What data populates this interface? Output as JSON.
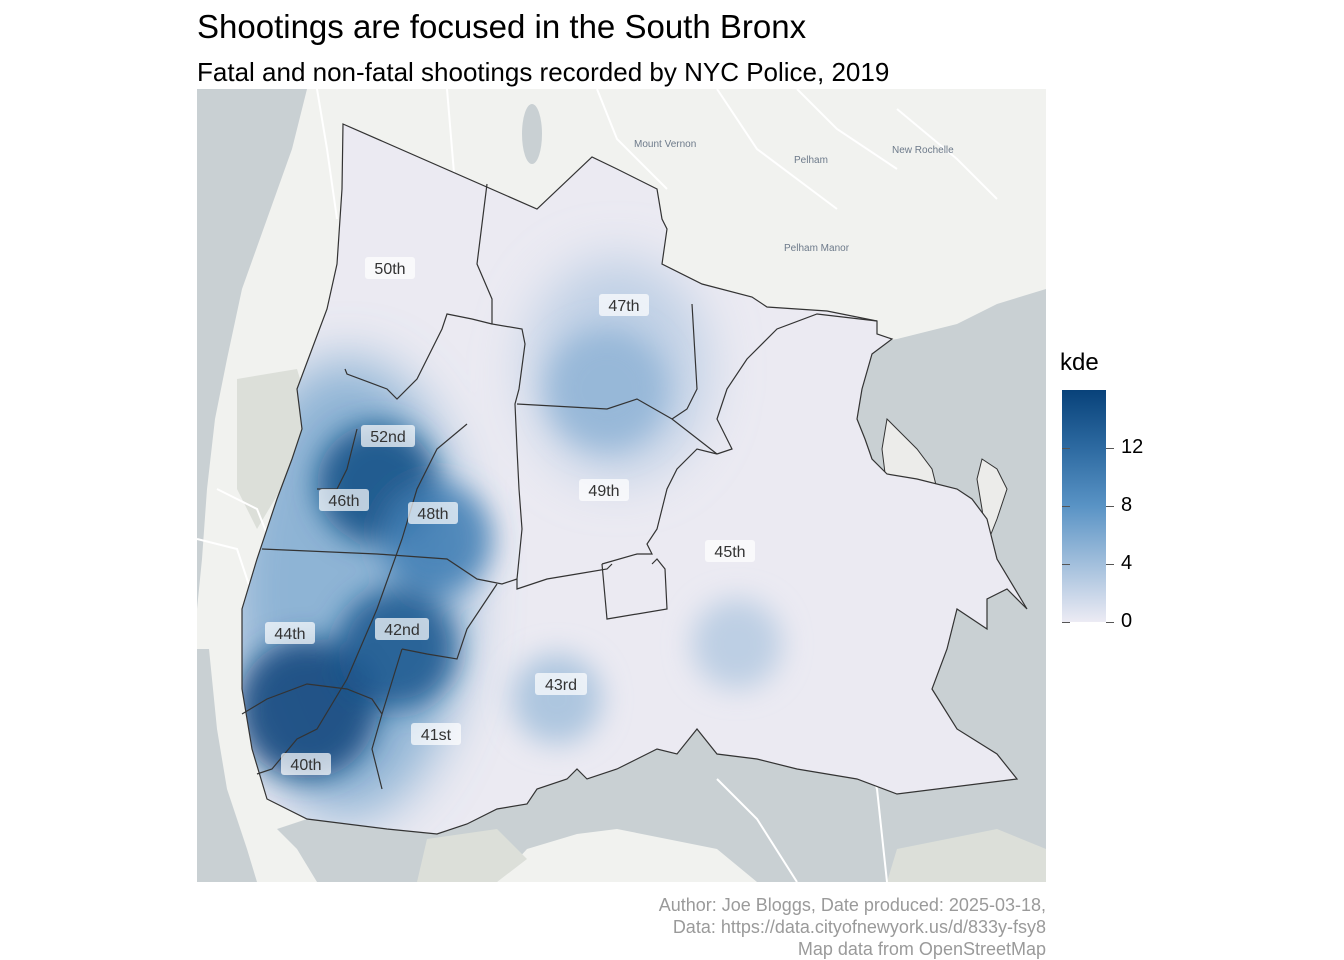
{
  "title": "Shootings are focused in the South Bronx",
  "subtitle": "Fatal and non-fatal shootings recorded by NYC Police, 2019",
  "basemap": {
    "towns": [
      "Mount Vernon",
      "Pelham",
      "New Rochelle",
      "Pelham Manor"
    ],
    "colors": {
      "land": "#f1f2ef",
      "water": "#c9d0d3",
      "park": "#d9dcd7",
      "road": "#ffffff"
    }
  },
  "precincts": [
    "50th",
    "47th",
    "52nd",
    "46th",
    "48th",
    "49th",
    "45th",
    "44th",
    "42nd",
    "43rd",
    "41st",
    "40th"
  ],
  "legend": {
    "title": "kde",
    "labels": [
      "0",
      "4",
      "8",
      "12"
    ],
    "values": [
      0,
      4,
      8,
      12
    ],
    "range": [
      0,
      16
    ],
    "color_low": "#ecebf4",
    "color_high": "#08427a"
  },
  "density_hotspots": [
    {
      "near": "46th / 52nd",
      "level": 15
    },
    {
      "near": "44th / 40th",
      "level": 16
    },
    {
      "near": "42nd",
      "level": 14
    },
    {
      "near": "48th",
      "level": 10
    },
    {
      "near": "47th",
      "level": 5
    },
    {
      "near": "43rd",
      "level": 4
    },
    {
      "near": "45th",
      "level": 3
    }
  ],
  "caption": {
    "line1": "Author: Joe Bloggs, Date produced: 2025-03-18,",
    "line2": "Data: https://data.cityofnewyork.us/d/833y-fsy8",
    "line3": "Map data from OpenStreetMap"
  }
}
